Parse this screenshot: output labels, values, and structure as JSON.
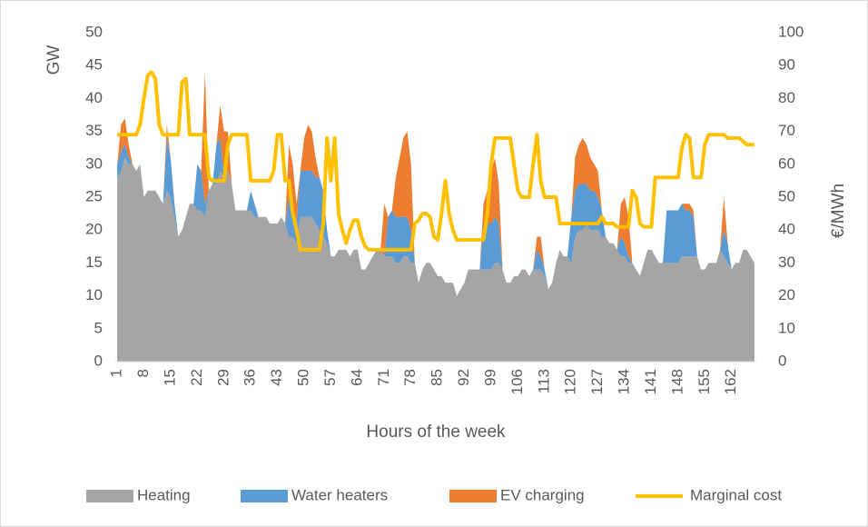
{
  "chart_data": {
    "type": "stacked-area-line",
    "x_label": "Hours of the week",
    "y_label": "GW",
    "y2_label": "€/MWh",
    "categories": [
      1,
      null,
      null,
      null,
      null,
      null,
      null,
      8,
      null,
      null,
      null,
      null,
      null,
      null,
      15,
      null,
      null,
      null,
      null,
      null,
      null,
      22,
      null,
      null,
      null,
      null,
      null,
      null,
      29,
      null,
      null,
      null,
      null,
      null,
      null,
      36,
      null,
      null,
      null,
      null,
      null,
      null,
      43,
      null,
      null,
      null,
      null,
      null,
      null,
      50,
      null,
      null,
      null,
      null,
      null,
      null,
      57,
      null,
      null,
      null,
      null,
      null,
      null,
      64,
      null,
      null,
      null,
      null,
      null,
      null,
      71,
      null,
      null,
      null,
      null,
      null,
      null,
      78,
      null,
      null,
      null,
      null,
      null,
      null,
      85,
      null,
      null,
      null,
      null,
      null,
      null,
      92,
      null,
      null,
      null,
      null,
      null,
      null,
      99,
      null,
      null,
      null,
      null,
      null,
      null,
      106,
      null,
      null,
      null,
      null,
      null,
      null,
      113,
      null,
      null,
      null,
      null,
      null,
      null,
      120,
      null,
      null,
      null,
      null,
      null,
      null,
      127,
      null,
      null,
      null,
      null,
      null,
      null,
      134,
      null,
      null,
      null,
      null,
      null,
      null,
      141,
      null,
      null,
      null,
      null,
      null,
      null,
      148,
      null,
      null,
      null,
      null,
      null,
      null,
      155,
      null,
      null,
      null,
      null,
      null,
      null,
      162,
      null,
      null,
      null,
      null,
      null,
      null
    ],
    "series": [
      {
        "name": "Heating",
        "color": "#a5a5a5",
        "kind": "area",
        "values": [
          28,
          29,
          31,
          30,
          30,
          29,
          30,
          25,
          26,
          26,
          26,
          25,
          24,
          26,
          25,
          22,
          19,
          20,
          22,
          24,
          24,
          23,
          23,
          22,
          26,
          27,
          27,
          29,
          28,
          29,
          27,
          23,
          23,
          23,
          23,
          23,
          22,
          22,
          22,
          22,
          21,
          21,
          21,
          22,
          21,
          19,
          19,
          18,
          22,
          22,
          22,
          22,
          21,
          20,
          19,
          18,
          16,
          16,
          17,
          17,
          17,
          16,
          17,
          17,
          14,
          14,
          15,
          16,
          17,
          17,
          16,
          16,
          16,
          15,
          15,
          16,
          16,
          15,
          15,
          12,
          14,
          15,
          15,
          14,
          13,
          13,
          12,
          12,
          12,
          10,
          11,
          12,
          14,
          14,
          14,
          14,
          14,
          14,
          14,
          15,
          15,
          14,
          12,
          12,
          13,
          13,
          14,
          14,
          13,
          14,
          14,
          14,
          13,
          11,
          12,
          15,
          17,
          16,
          16,
          15,
          19,
          20,
          20,
          21,
          20,
          20,
          20,
          19,
          19,
          18,
          18,
          17,
          16,
          16,
          15,
          15,
          14,
          13,
          15,
          17,
          17,
          16,
          15,
          15,
          15,
          15,
          15,
          15,
          16,
          16,
          16,
          16,
          16,
          14,
          14,
          15,
          15,
          15,
          17,
          16,
          15,
          14,
          15,
          15,
          17,
          17,
          16,
          15
        ]
      },
      {
        "name": "Water heaters",
        "color": "#5b9bd5",
        "kind": "area",
        "values": [
          2,
          3,
          2,
          1,
          0,
          0,
          0,
          0,
          0,
          0,
          0,
          0,
          0,
          8,
          6,
          2,
          0,
          0,
          0,
          0,
          0,
          7,
          6,
          2,
          0,
          0,
          6,
          5,
          0,
          0,
          0,
          0,
          0,
          0,
          0,
          3,
          2,
          0,
          0,
          0,
          0,
          0,
          0,
          0,
          0,
          6,
          5,
          3,
          7,
          7,
          7,
          7,
          7,
          8,
          7,
          2,
          0,
          0,
          0,
          0,
          0,
          0,
          0,
          0,
          0,
          0,
          0,
          0,
          0,
          0,
          0,
          6,
          7,
          7,
          7,
          6,
          6,
          5,
          0,
          0,
          0,
          0,
          0,
          0,
          0,
          0,
          0,
          0,
          0,
          0,
          0,
          0,
          0,
          0,
          0,
          0,
          7,
          7,
          7,
          7,
          6,
          0,
          0,
          0,
          0,
          0,
          0,
          0,
          0,
          0,
          3,
          2,
          1,
          0,
          0,
          0,
          0,
          0,
          0,
          7,
          7,
          7,
          7,
          6,
          6,
          6,
          5,
          4,
          0,
          0,
          0,
          0,
          3,
          2,
          1,
          0,
          0,
          0,
          0,
          0,
          0,
          0,
          0,
          0,
          8,
          8,
          8,
          8,
          8,
          7,
          7,
          6,
          0,
          0,
          0,
          0,
          0,
          0,
          0,
          4,
          3,
          0,
          0,
          0,
          0,
          0,
          0,
          0
        ]
      },
      {
        "name": "EV charging",
        "color": "#ed7d31",
        "kind": "area",
        "values": [
          0,
          4,
          4,
          2,
          0,
          0,
          0,
          0,
          0,
          0,
          0,
          0,
          0,
          2,
          0,
          0,
          0,
          0,
          0,
          0,
          0,
          0,
          0,
          20,
          0,
          0,
          0,
          5,
          7,
          6,
          0,
          0,
          0,
          0,
          0,
          0,
          0,
          0,
          0,
          0,
          0,
          0,
          0,
          0,
          0,
          8,
          6,
          3,
          0,
          5,
          7,
          6,
          3,
          0,
          0,
          0,
          0,
          0,
          0,
          0,
          0,
          0,
          0,
          0,
          0,
          0,
          0,
          0,
          0,
          0,
          8,
          0,
          0,
          6,
          9,
          12,
          13,
          10,
          0,
          0,
          0,
          0,
          0,
          0,
          0,
          0,
          0,
          0,
          0,
          0,
          0,
          0,
          0,
          0,
          0,
          0,
          3,
          5,
          8,
          9,
          6,
          0,
          0,
          0,
          0,
          0,
          0,
          0,
          0,
          0,
          2,
          3,
          0,
          0,
          0,
          0,
          0,
          0,
          0,
          0,
          5,
          6,
          7,
          6,
          5,
          4,
          4,
          0,
          0,
          0,
          0,
          0,
          5,
          7,
          6,
          0,
          0,
          0,
          0,
          0,
          0,
          0,
          0,
          0,
          0,
          0,
          0,
          0,
          0,
          1,
          1,
          1,
          0,
          0,
          0,
          0,
          0,
          0,
          0,
          5,
          0,
          0,
          0,
          0,
          0,
          0,
          0,
          0
        ]
      },
      {
        "name": "Marginal cost",
        "color": "#ffc000",
        "kind": "line",
        "axis": "y2",
        "values": [
          69,
          69,
          69,
          69,
          69,
          69,
          72,
          80,
          87,
          88,
          86,
          72,
          69,
          69,
          69,
          69,
          69,
          85,
          86,
          69,
          69,
          69,
          69,
          69,
          56,
          55,
          55,
          55,
          55,
          66,
          69,
          69,
          69,
          69,
          69,
          55,
          55,
          55,
          55,
          55,
          55,
          58,
          69,
          69,
          55,
          55,
          45,
          40,
          34,
          34,
          34,
          34,
          34,
          34,
          42,
          68,
          55,
          68,
          45,
          40,
          36,
          40,
          43,
          43,
          38,
          35,
          34,
          34,
          34,
          34,
          34,
          34,
          34,
          34,
          34,
          34,
          34,
          34,
          42,
          43,
          45,
          45,
          44,
          38,
          37,
          45,
          55,
          45,
          40,
          37,
          37,
          37,
          37,
          37,
          37,
          37,
          37,
          45,
          60,
          68,
          68,
          68,
          68,
          68,
          60,
          52,
          50,
          50,
          50,
          60,
          69,
          55,
          50,
          50,
          50,
          50,
          42,
          42,
          42,
          42,
          42,
          42,
          42,
          42,
          42,
          42,
          42,
          44,
          42,
          42,
          42,
          41,
          41,
          41,
          41,
          52,
          50,
          42,
          41,
          41,
          41,
          56,
          56,
          56,
          56,
          56,
          56,
          56,
          65,
          69,
          68,
          56,
          56,
          56,
          66,
          69,
          69,
          69,
          69,
          69,
          68,
          68,
          68,
          68,
          67,
          66,
          66,
          66
        ]
      }
    ],
    "ylim": [
      0,
      50
    ],
    "yticks": [
      0,
      5,
      10,
      15,
      20,
      25,
      30,
      35,
      40,
      45,
      50
    ],
    "y2lim": [
      0,
      100
    ],
    "y2ticks": [
      0,
      10,
      20,
      30,
      40,
      50,
      60,
      70,
      80,
      90,
      100
    ],
    "grid": false,
    "legend": "bottom"
  }
}
